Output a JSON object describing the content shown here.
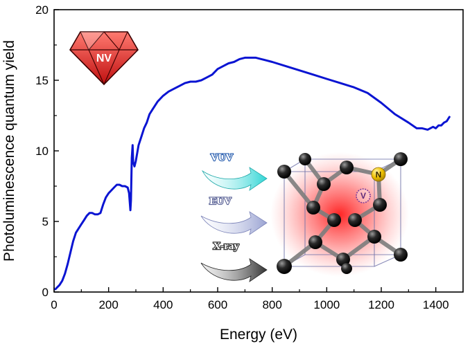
{
  "chart_data": {
    "type": "line",
    "xlabel": "Energy (eV)",
    "ylabel": "Photoluminescence quantum yield",
    "xlim": [
      0,
      1500
    ],
    "ylim": [
      0,
      20
    ],
    "x_ticks": [
      0,
      200,
      400,
      600,
      800,
      1000,
      1200,
      1400
    ],
    "y_ticks": [
      0,
      5,
      10,
      15,
      20
    ],
    "grid": false,
    "series": [
      {
        "color": "#0a14d2",
        "x": [
          5,
          10,
          20,
          30,
          40,
          50,
          60,
          70,
          80,
          90,
          100,
          110,
          120,
          130,
          140,
          150,
          160,
          170,
          180,
          190,
          200,
          210,
          220,
          230,
          240,
          250,
          260,
          270,
          275,
          280,
          282,
          285,
          288,
          290,
          295,
          300,
          310,
          320,
          330,
          340,
          350,
          360,
          380,
          400,
          420,
          440,
          460,
          480,
          500,
          520,
          540,
          560,
          580,
          600,
          620,
          640,
          660,
          680,
          700,
          720,
          740,
          760,
          780,
          800,
          850,
          900,
          950,
          1000,
          1050,
          1100,
          1150,
          1200,
          1250,
          1300,
          1330,
          1350,
          1370,
          1390,
          1400,
          1410,
          1420,
          1430,
          1440,
          1450
        ],
        "y": [
          0.2,
          0.3,
          0.5,
          0.8,
          1.3,
          2.0,
          2.8,
          3.6,
          4.2,
          4.5,
          4.8,
          5.1,
          5.4,
          5.6,
          5.6,
          5.5,
          5.5,
          5.6,
          6.2,
          6.7,
          7.0,
          7.2,
          7.4,
          7.6,
          7.6,
          7.5,
          7.5,
          7.4,
          7.0,
          5.8,
          6.5,
          9.5,
          10.4,
          9.2,
          8.9,
          9.3,
          10.4,
          11.0,
          11.6,
          12.0,
          12.6,
          12.9,
          13.5,
          13.9,
          14.2,
          14.4,
          14.6,
          14.8,
          14.9,
          14.9,
          15.0,
          15.2,
          15.4,
          15.8,
          16.0,
          16.2,
          16.3,
          16.5,
          16.6,
          16.6,
          16.6,
          16.5,
          16.4,
          16.3,
          16.0,
          15.7,
          15.4,
          15.1,
          14.8,
          14.5,
          14.1,
          13.4,
          12.6,
          12.0,
          11.6,
          11.6,
          11.5,
          11.7,
          11.6,
          11.8,
          11.8,
          12.0,
          12.1,
          12.4
        ]
      }
    ]
  },
  "inset": {
    "badge_label": "NV",
    "radiation_labels": [
      "VUV",
      "EUV",
      "X-ray"
    ],
    "atom_labels": {
      "nitrogen": "N",
      "vacancy": "V"
    }
  },
  "colors": {
    "line": "#0a14d2",
    "vuv_arrow": "#40d8d8",
    "euv_arrow": "#a9b0d8",
    "xray_arrow": "#4a4a4a",
    "gem": "#e8352a",
    "nitrogen_atom": "#f2c300"
  }
}
